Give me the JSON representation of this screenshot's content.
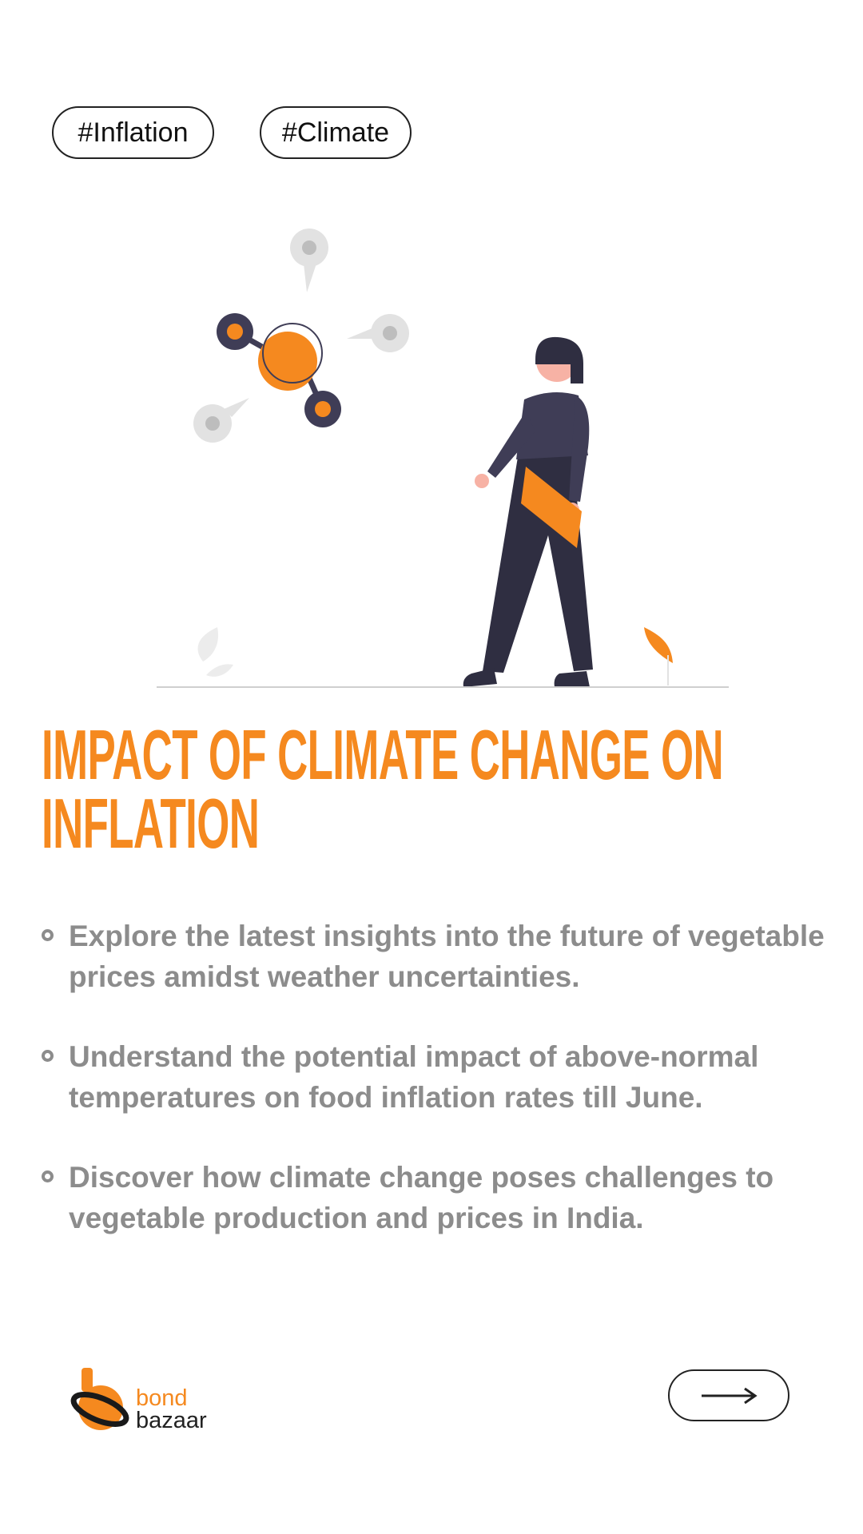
{
  "tags": [
    "#Inflation",
    "#Climate"
  ],
  "title": "IMPACT OF CLIMATE CHANGE ON INFLATION",
  "bullets": [
    "Explore the latest insights into the future of vegetable prices amidst weather uncertainties.",
    "Understand the potential impact of above-normal temperatures on food inflation rates till June.",
    "Discover how climate change poses challenges to vegetable production and prices in India."
  ],
  "logo": {
    "top": "bond",
    "bottom": "bazaar"
  }
}
